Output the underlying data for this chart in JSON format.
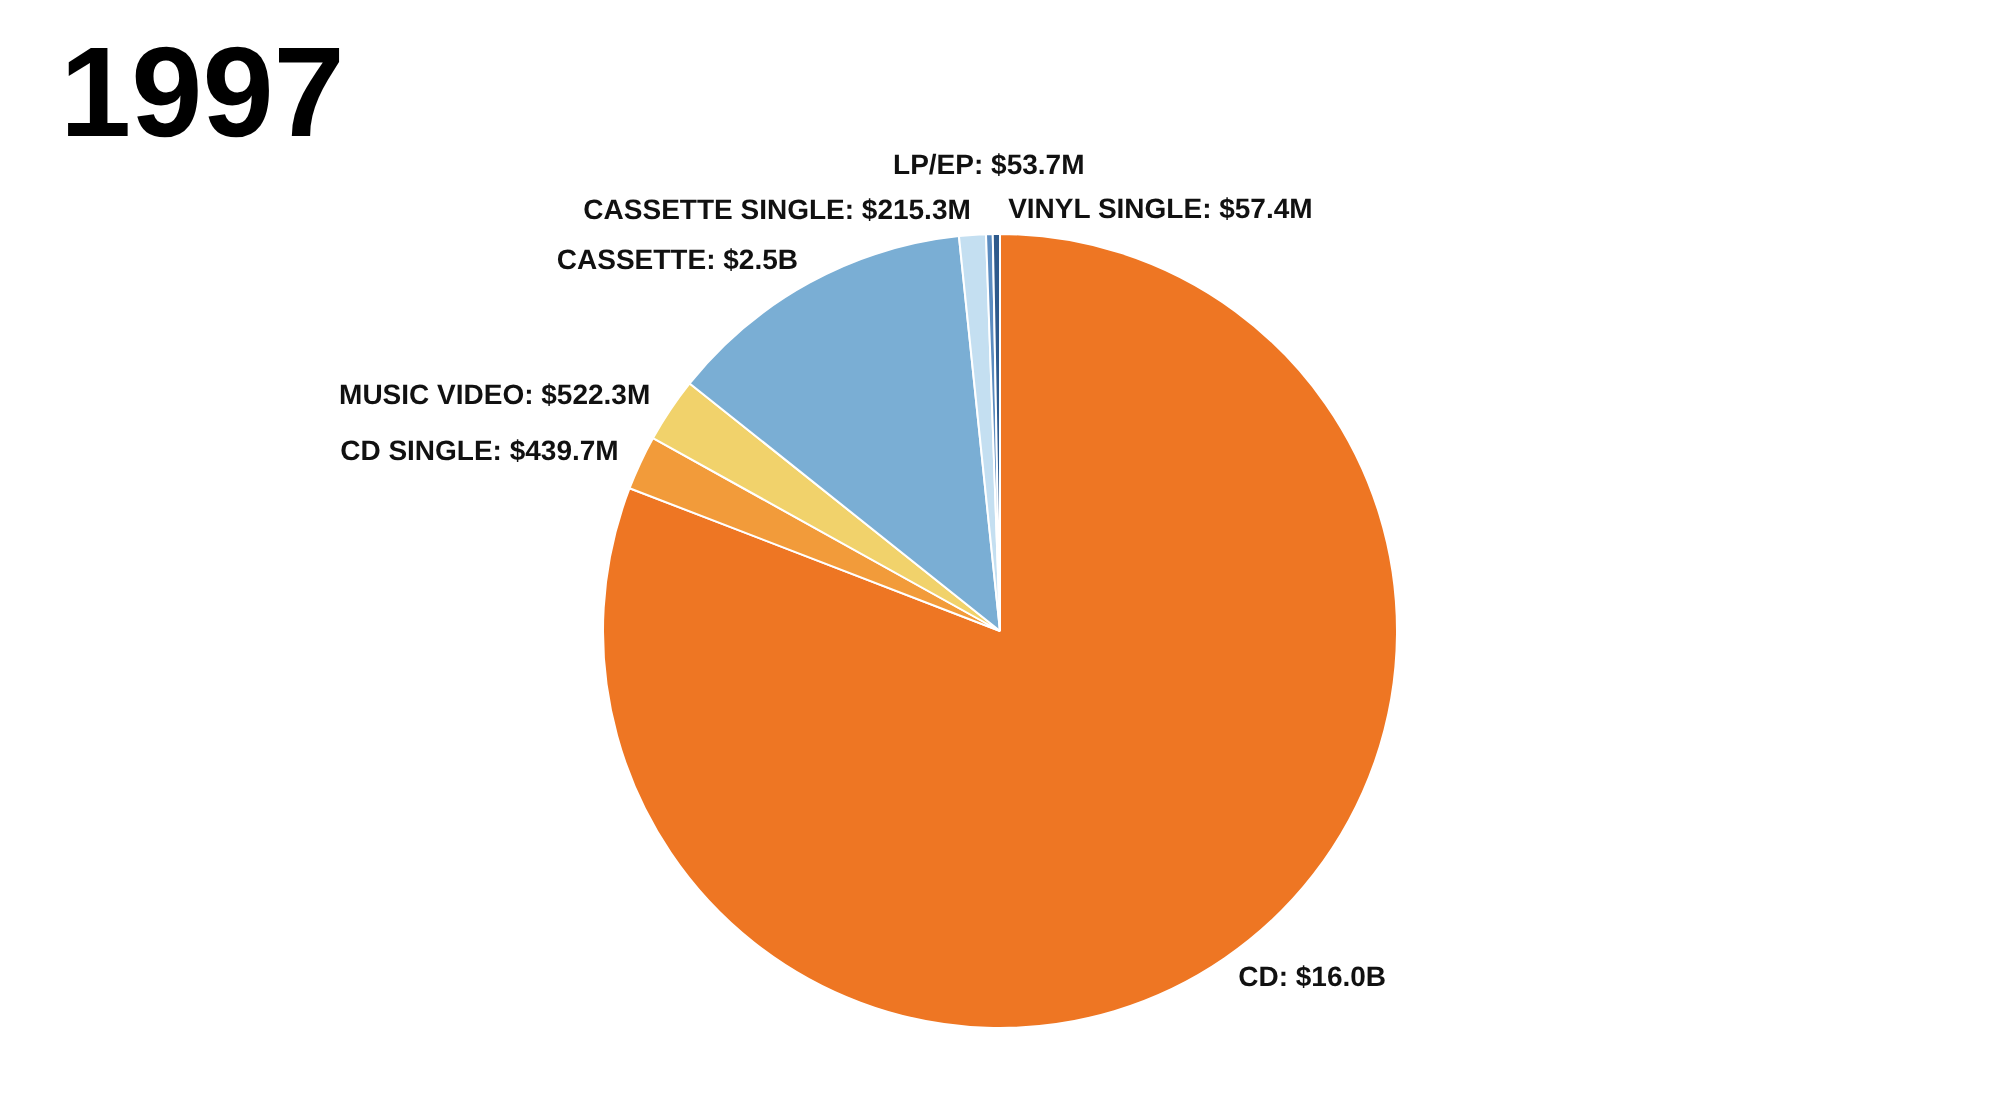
{
  "chart_data": {
    "type": "pie",
    "title": "1997",
    "categories": [
      "CD",
      "CD SINGLE",
      "MUSIC VIDEO",
      "CASSETTE",
      "CASSETTE SINGLE",
      "LP/EP",
      "VINYL SINGLE"
    ],
    "values": [
      16000000000,
      439700000,
      522300000,
      2500000000,
      215300000,
      53700000,
      57400000
    ],
    "value_labels": [
      "$16.0B",
      "$439.7M",
      "$522.3M",
      "$2.5B",
      "$215.3M",
      "$53.7M",
      "$57.4M"
    ],
    "colors": [
      "#ee7623",
      "#f29b3a",
      "#f1d26b",
      "#7aaed4",
      "#c4dff1",
      "#5b8cc0",
      "#2e5a8c"
    ]
  }
}
